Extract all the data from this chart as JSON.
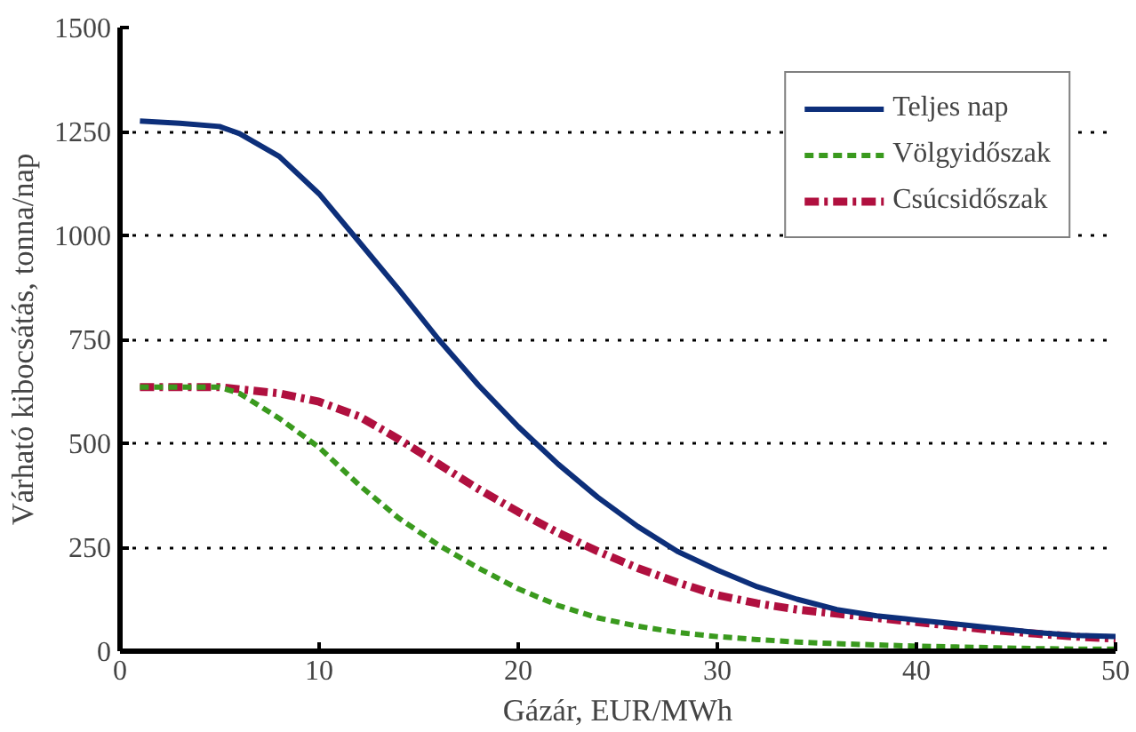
{
  "chart_data": {
    "type": "line",
    "xlabel": "Gázár, EUR/MWh",
    "ylabel": "Várható kibocsátás, tonna/nap",
    "xlim": [
      0,
      50
    ],
    "ylim": [
      0,
      1500
    ],
    "xticks": [
      0,
      10,
      20,
      30,
      40,
      50
    ],
    "yticks": [
      0,
      250,
      500,
      750,
      1000,
      1250,
      1500
    ],
    "grid": "y",
    "legend": "top right",
    "series": [
      {
        "name": "Teljes nap",
        "color": "#0d2f7a",
        "line_style": "solid",
        "x": [
          1,
          3,
          5,
          6,
          8,
          10,
          12,
          14,
          16,
          18,
          20,
          22,
          24,
          26,
          28,
          30,
          32,
          34,
          36,
          38,
          40,
          42,
          44,
          46,
          48,
          50
        ],
        "values": [
          1275,
          1270,
          1262,
          1245,
          1190,
          1100,
          985,
          870,
          750,
          640,
          540,
          450,
          370,
          300,
          240,
          195,
          155,
          125,
          100,
          85,
          75,
          65,
          55,
          45,
          38,
          35
        ]
      },
      {
        "name": "Völgyidőszak",
        "color": "#3a9a1e",
        "line_style": "dashed",
        "x": [
          1,
          5,
          6,
          8,
          10,
          12,
          14,
          16,
          18,
          20,
          22,
          24,
          26,
          28,
          30,
          32,
          34,
          36,
          38,
          40,
          42,
          44,
          46,
          48,
          50
        ],
        "values": [
          635,
          635,
          620,
          560,
          490,
          400,
          320,
          255,
          200,
          150,
          110,
          80,
          60,
          45,
          35,
          28,
          22,
          18,
          15,
          12,
          10,
          8,
          6,
          5,
          5
        ]
      },
      {
        "name": "Csúcsidőszak",
        "color": "#b0103f",
        "line_style": "dashdot",
        "x": [
          1,
          5,
          8,
          10,
          12,
          14,
          16,
          18,
          20,
          22,
          24,
          26,
          28,
          30,
          32,
          34,
          36,
          38,
          40,
          42,
          44,
          46,
          48,
          50
        ],
        "values": [
          635,
          635,
          620,
          600,
          565,
          510,
          450,
          390,
          335,
          285,
          240,
          200,
          165,
          135,
          115,
          100,
          90,
          80,
          70,
          60,
          50,
          42,
          35,
          30
        ]
      }
    ]
  }
}
